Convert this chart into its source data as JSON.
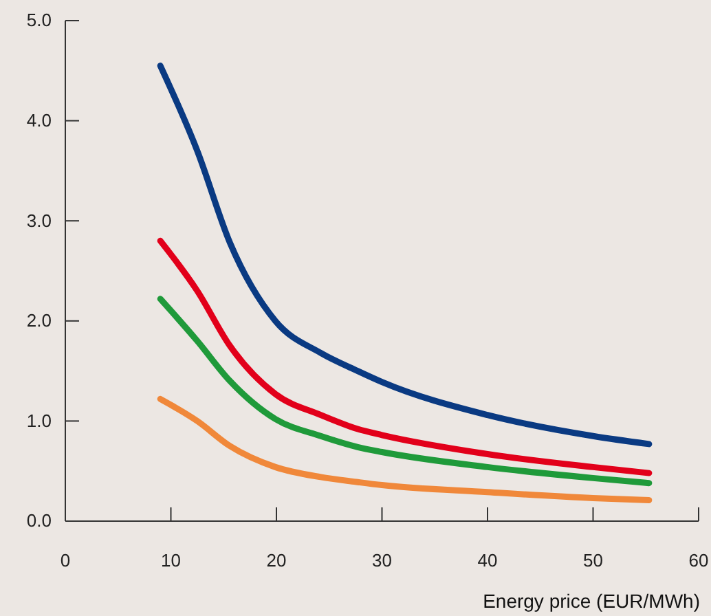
{
  "chart_data": {
    "type": "line",
    "xlabel": "Energy price (EUR/MWh)",
    "xlim": [
      0,
      60
    ],
    "xticks": [
      0,
      10,
      20,
      30,
      40,
      50,
      60
    ],
    "ylim": [
      0,
      5
    ],
    "yticks": [
      {
        "value": 0,
        "label": "0.0"
      },
      {
        "value": 1,
        "label": "1.0"
      },
      {
        "value": 2,
        "label": "2.0"
      },
      {
        "value": 3,
        "label": "3.0"
      },
      {
        "value": 4,
        "label": "4.0"
      },
      {
        "value": 5,
        "label": "5.0"
      }
    ],
    "grid": false,
    "marker": "none",
    "line_style": "solid",
    "x": [
      9,
      12.5,
      15.6,
      19.9,
      24.2,
      27.7,
      30,
      40,
      50,
      55.3
    ],
    "series": [
      {
        "color": "#0a3a82",
        "values": [
          4.55,
          3.7,
          2.78,
          2.0,
          1.68,
          1.5,
          1.39,
          1.06,
          0.85,
          0.77
        ]
      },
      {
        "color": "#e2001a",
        "values": [
          2.8,
          2.3,
          1.75,
          1.27,
          1.06,
          0.92,
          0.86,
          0.67,
          0.54,
          0.48
        ]
      },
      {
        "color": "#1f9a3a",
        "values": [
          2.22,
          1.8,
          1.4,
          1.02,
          0.85,
          0.74,
          0.69,
          0.54,
          0.43,
          0.38
        ]
      },
      {
        "color": "#f0883a",
        "values": [
          1.22,
          1.0,
          0.75,
          0.54,
          0.44,
          0.39,
          0.36,
          0.29,
          0.23,
          0.21
        ]
      }
    ]
  }
}
